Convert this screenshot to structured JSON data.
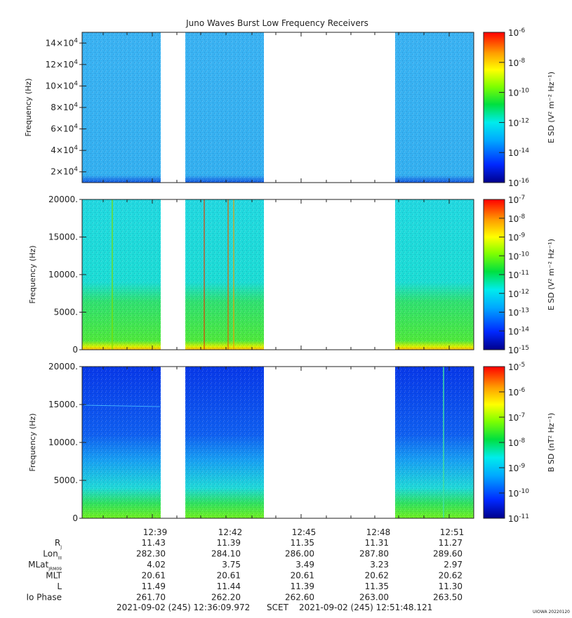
{
  "title": "Juno Waves Burst Low Frequency Receivers",
  "colors": {
    "background": "#ffffff",
    "axis": "#222222",
    "colormap": [
      "#0000a0",
      "#0030ff",
      "#00a8ff",
      "#00e8f0",
      "#00e860",
      "#80ff00",
      "#ffff00",
      "#ffb000",
      "#ff5000",
      "#ff0000"
    ]
  },
  "chart_data": [
    {
      "type": "heatmap",
      "name": "panel-1",
      "ylabel": "Frequency (Hz)",
      "ylim": [
        10000,
        150000
      ],
      "yticks": [
        {
          "value": 20000,
          "base": "2×10",
          "exp": "4"
        },
        {
          "value": 40000,
          "base": "4×10",
          "exp": "4"
        },
        {
          "value": 60000,
          "base": "6×10",
          "exp": "4"
        },
        {
          "value": 80000,
          "base": "8×10",
          "exp": "4"
        },
        {
          "value": 100000,
          "base": "10×10",
          "exp": "4"
        },
        {
          "value": 120000,
          "base": "12×10",
          "exp": "4"
        },
        {
          "value": 140000,
          "base": "14×10",
          "exp": "4"
        }
      ],
      "colorbar": {
        "label": "E SD (V² m⁻² Hz⁻¹)",
        "scale": "log",
        "ticks": [
          {
            "base": "10",
            "exp": "-6"
          },
          {
            "base": "10",
            "exp": "-8"
          },
          {
            "base": "10",
            "exp": "-10"
          },
          {
            "base": "10",
            "exp": "-12"
          },
          {
            "base": "10",
            "exp": "-14"
          },
          {
            "base": "10",
            "exp": "-16"
          }
        ]
      }
    },
    {
      "type": "heatmap",
      "name": "panel-2",
      "ylabel": "Frequency (Hz)",
      "ylim": [
        0,
        20000
      ],
      "yticks": [
        {
          "value": 0,
          "label": "0"
        },
        {
          "value": 5000,
          "label": "5000."
        },
        {
          "value": 10000,
          "label": "10000."
        },
        {
          "value": 15000,
          "label": "15000."
        },
        {
          "value": 20000,
          "label": "20000."
        }
      ],
      "colorbar": {
        "label": "E SD (V² m⁻² Hz⁻¹)",
        "scale": "log",
        "ticks": [
          {
            "base": "10",
            "exp": "-7"
          },
          {
            "base": "10",
            "exp": "-8"
          },
          {
            "base": "10",
            "exp": "-9"
          },
          {
            "base": "10",
            "exp": "-10"
          },
          {
            "base": "10",
            "exp": "-11"
          },
          {
            "base": "10",
            "exp": "-12"
          },
          {
            "base": "10",
            "exp": "-13"
          },
          {
            "base": "10",
            "exp": "-14"
          },
          {
            "base": "10",
            "exp": "-15"
          }
        ]
      }
    },
    {
      "type": "heatmap",
      "name": "panel-3",
      "ylabel": "Frequency (Hz)",
      "ylim": [
        0,
        20000
      ],
      "yticks": [
        {
          "value": 0,
          "label": "0"
        },
        {
          "value": 5000,
          "label": "5000."
        },
        {
          "value": 10000,
          "label": "10000."
        },
        {
          "value": 15000,
          "label": "15000."
        },
        {
          "value": 20000,
          "label": "20000."
        }
      ],
      "colorbar": {
        "label": "B SD (nT² Hz⁻¹)",
        "scale": "log",
        "ticks": [
          {
            "base": "10",
            "exp": "-5"
          },
          {
            "base": "10",
            "exp": "-6"
          },
          {
            "base": "10",
            "exp": "-7"
          },
          {
            "base": "10",
            "exp": "-8"
          },
          {
            "base": "10",
            "exp": "-9"
          },
          {
            "base": "10",
            "exp": "-10"
          },
          {
            "base": "10",
            "exp": "-11"
          }
        ]
      }
    }
  ],
  "time_axis": {
    "ticks": [
      "12:39",
      "12:42",
      "12:45",
      "12:48",
      "12:51"
    ],
    "rows": [
      {
        "label": "R",
        "sub": "J",
        "values": [
          "11.43",
          "11.39",
          "11.35",
          "11.31",
          "11.27"
        ]
      },
      {
        "label": "Lon",
        "sub": "III",
        "values": [
          "282.30",
          "284.10",
          "286.00",
          "287.80",
          "289.60"
        ]
      },
      {
        "label": "MLat",
        "sub": "JRM09",
        "values": [
          "4.02",
          "3.75",
          "3.49",
          "3.23",
          "2.97"
        ]
      },
      {
        "label": "MLT",
        "sub": "",
        "values": [
          "20.61",
          "20.61",
          "20.61",
          "20.62",
          "20.62"
        ]
      },
      {
        "label": "L",
        "sub": "",
        "values": [
          "11.49",
          "11.44",
          "11.39",
          "11.35",
          "11.30"
        ]
      },
      {
        "label": "Io Phase",
        "sub": "",
        "values": [
          "261.70",
          "262.20",
          "262.60",
          "263.00",
          "263.50"
        ]
      }
    ]
  },
  "footer": {
    "start": "2021-09-02 (245) 12:36:09.972",
    "scet": "SCET",
    "end": "2021-09-02 (245) 12:51:48.121",
    "stamp": "UIOWA 20220120"
  }
}
